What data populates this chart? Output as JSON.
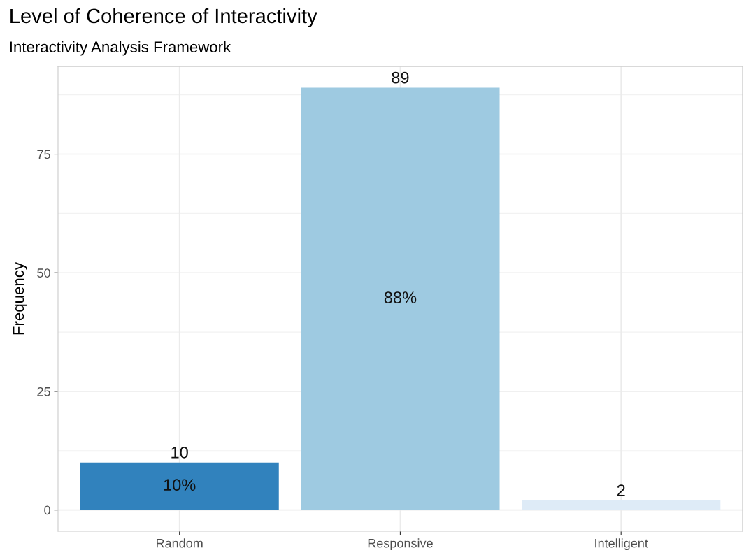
{
  "chart_data": {
    "type": "bar",
    "title": "Level of Coherence of Interactivity",
    "subtitle": "Interactivity Analysis Framework",
    "ylabel": "Frequency",
    "categories": [
      "Random",
      "Responsive",
      "Intelligent"
    ],
    "values": [
      10,
      89,
      2
    ],
    "colors": [
      "#3182bd",
      "#9ecae1",
      "#deebf7"
    ],
    "data_labels": true,
    "annotations": [
      "10%",
      "88%"
    ],
    "ylim": [
      -4.45,
      93.45
    ],
    "yticks": [
      0,
      25,
      50,
      75
    ],
    "grid": true
  }
}
